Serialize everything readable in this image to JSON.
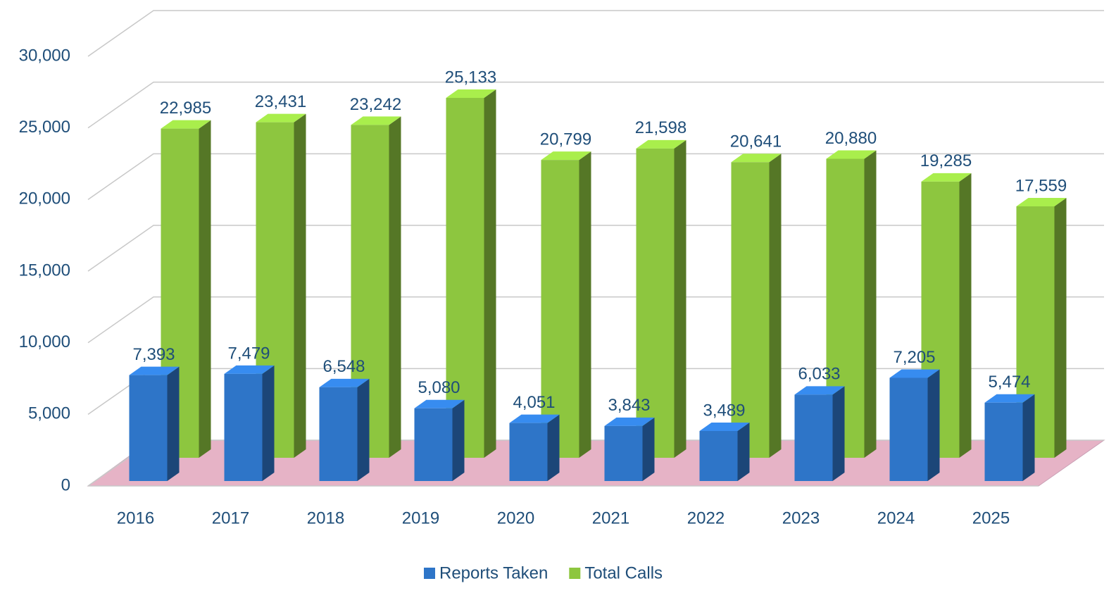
{
  "chart_data": {
    "type": "bar3d",
    "categories": [
      "2016",
      "2017",
      "2018",
      "2019",
      "2020",
      "2021",
      "2022",
      "2023",
      "2024",
      "2025"
    ],
    "series": [
      {
        "name": "Reports Taken",
        "color": "#2e75c8",
        "values": [
          7393,
          7479,
          6548,
          5080,
          4051,
          3843,
          3489,
          6033,
          7205,
          5474
        ],
        "value_labels": [
          "7,393",
          "7,479",
          "6,548",
          "5,080",
          "4,051",
          "3,843",
          "3,489",
          "6,033",
          "7,205",
          "5,474"
        ]
      },
      {
        "name": "Total Calls",
        "color": "#8dc63f",
        "values": [
          22985,
          23431,
          23242,
          25133,
          20799,
          21598,
          20641,
          20880,
          19285,
          17559
        ],
        "value_labels": [
          "22,985",
          "23,431",
          "23,242",
          "25,133",
          "20,799",
          "21,598",
          "20,641",
          "20,880",
          "19,285",
          "17,559"
        ]
      }
    ],
    "ylim": [
      0,
      30000
    ],
    "yticks": [
      0,
      {
        "value": 5000,
        "label": "5,000"
      },
      {
        "value": 10000,
        "label": "10,000"
      },
      {
        "value": 15000,
        "label": "15,000"
      },
      {
        "value": 20000,
        "label": "20,000"
      },
      {
        "value": 25000,
        "label": "25,000"
      },
      {
        "value": 30000,
        "label": "30,000"
      }
    ],
    "grid": true,
    "legend": "bottom"
  }
}
